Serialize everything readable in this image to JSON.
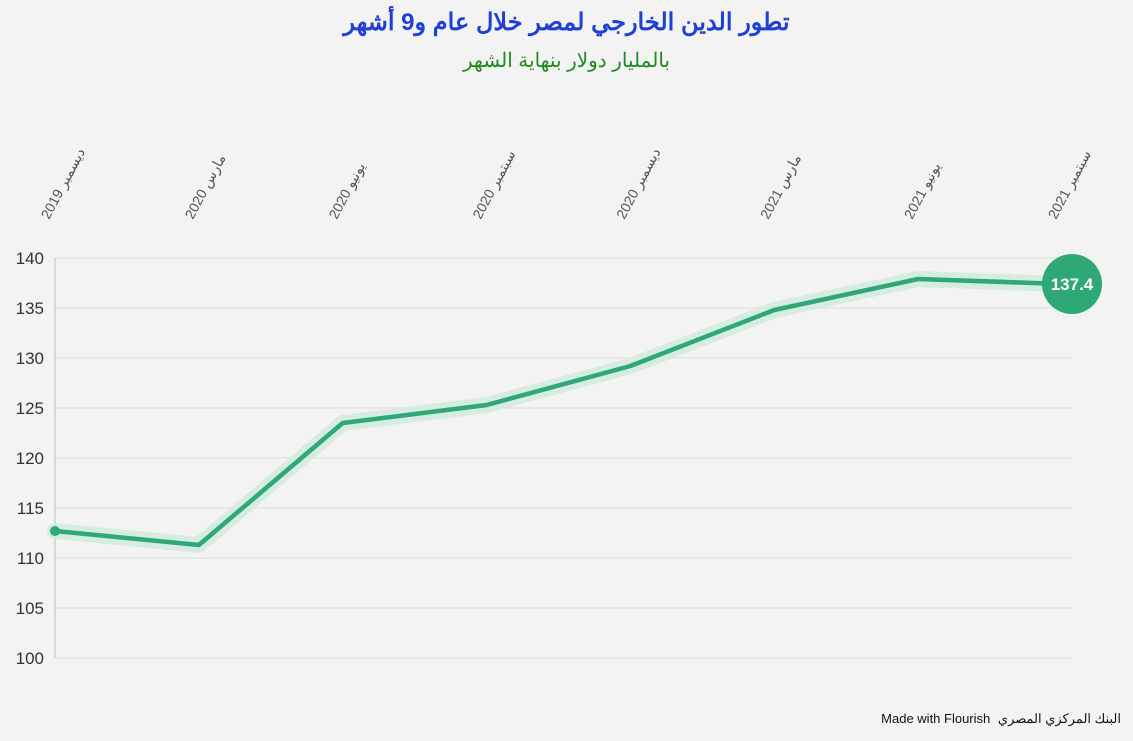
{
  "chart_data": {
    "type": "line",
    "title": "تطور الدين الخارجي لمصر خلال عام و9 أشهر",
    "subtitle": "بالمليار دولار بنهاية الشهر",
    "categories": [
      "ديسمبر 2019",
      "مارس 2020",
      "يونيو 2020",
      "سبتمبر 2020",
      "ديسمبر 2020",
      "مارس 2021",
      "يونيو 2021",
      "سبتمبر 2021"
    ],
    "values": [
      112.7,
      111.3,
      123.5,
      125.3,
      129.2,
      134.8,
      137.9,
      137.4
    ],
    "yticks": [
      100,
      105,
      110,
      115,
      120,
      125,
      130,
      135,
      140
    ],
    "ylim": [
      100,
      140
    ],
    "grid": true,
    "end_label": "137.4",
    "colors": {
      "line": "#2ea876",
      "halo": "#d3ebe0",
      "title": "#1f3fd6",
      "subtitle": "#1e8a1e"
    }
  },
  "footer": {
    "credit": "Made with Flourish",
    "source": "البنك المركزي المصري"
  }
}
